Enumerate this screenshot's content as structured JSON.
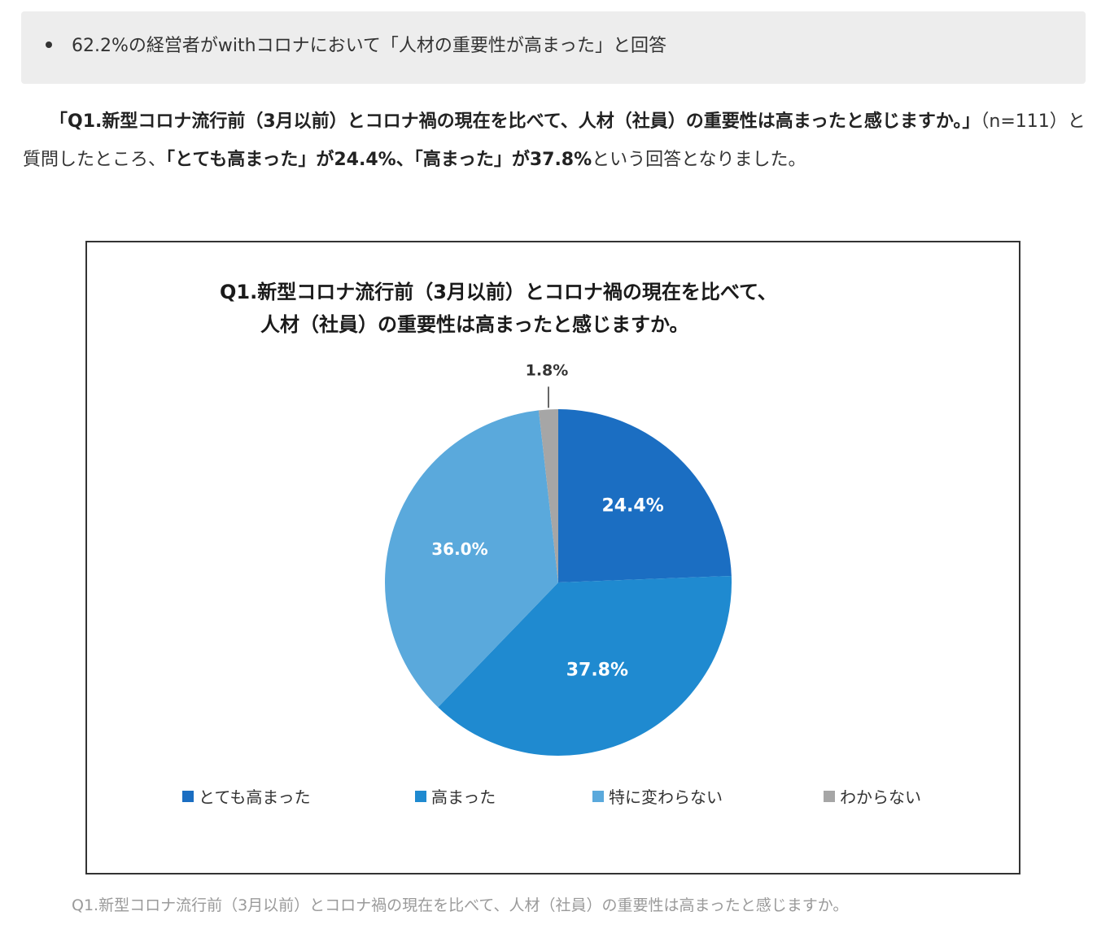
{
  "highlight": {
    "text": "62.2%の経営者がwithコロナにおいて「人材の重要性が高まった」と回答"
  },
  "paragraph": {
    "question_bold": "「Q1.新型コロナ流行前（3月以前）とコロナ禍の現在を比べて、人材（社員）の重要性は高まったと感じますか。」",
    "n_text": "（n=111）と質問したところ、",
    "answer1_bold": "「とても高まった」が24.4%、",
    "answer2_bold": "「高まった」が37.8%",
    "ending": "という回答となりました。"
  },
  "colors": {
    "very_increased": "#1b6ec2",
    "increased": "#1f8ad0",
    "unchanged": "#5aa9dc",
    "unknown": "#a6a6a6",
    "frame": "#333333",
    "highlight_bg": "#ededed",
    "caption": "#9a9a9a"
  },
  "chart_data": {
    "type": "pie",
    "title_line1": "Q1.新型コロナ流行前（3月以前）とコロナ禍の現在を比べて、",
    "title_line2": "人材（社員）の重要性は高まったと感じますか。",
    "series": [
      {
        "name": "とても高まった",
        "value": 24.4,
        "label": "24.4%",
        "color": "#1b6ec2"
      },
      {
        "name": "高まった",
        "value": 37.8,
        "label": "37.8%",
        "color": "#1f8ad0"
      },
      {
        "name": "特に変わらない",
        "value": 36.0,
        "label": "36.0%",
        "color": "#5aa9dc"
      },
      {
        "name": "わからない",
        "value": 1.8,
        "label": "1.8%",
        "color": "#a6a6a6"
      }
    ],
    "start_angle": "12 o'clock",
    "direction": "clockwise",
    "legend_position": "bottom"
  },
  "caption": {
    "text": "Q1.新型コロナ流行前（3月以前）とコロナ禍の現在を比べて、人材（社員）の重要性は高まったと感じますか。"
  }
}
